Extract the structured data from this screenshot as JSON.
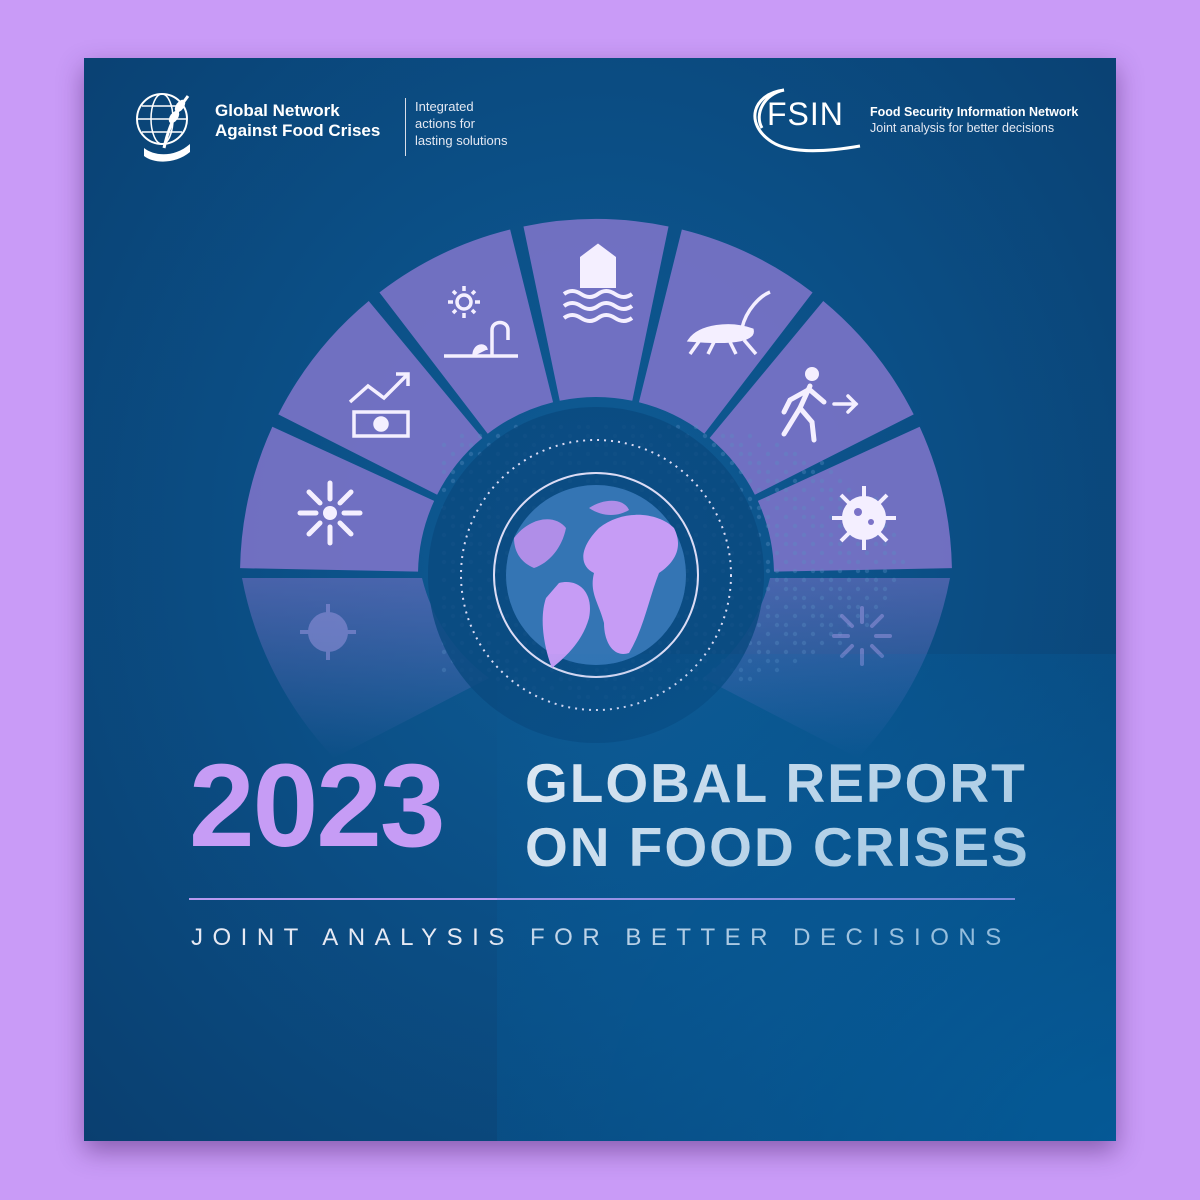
{
  "header": {
    "left_org": {
      "line1": "Global Network",
      "line2": "Against Food Crises"
    },
    "left_tagline": {
      "line1": "Integrated",
      "line2": "actions for",
      "line3": "lasting solutions"
    },
    "right_org": {
      "acronym": "FSIN",
      "name": "Food Security Information Network",
      "tagline": "Joint analysis for better decisions"
    }
  },
  "wheel": {
    "segments": [
      "economic-shocks-icon",
      "drought-icon",
      "flood-icon",
      "locust-icon",
      "displacement-icon",
      "virus-icon",
      "explosion-icon"
    ]
  },
  "title": {
    "year": "2023",
    "line1": "GLOBAL REPORT",
    "line2": "ON FOOD CRISES",
    "subtitle": "JOINT ANALYSIS FOR BETTER DECISIONS"
  },
  "colors": {
    "background": "#c99bf7",
    "cover": "#0b4f86",
    "accent": "#c69cf5",
    "segment": "#7b73c8"
  }
}
